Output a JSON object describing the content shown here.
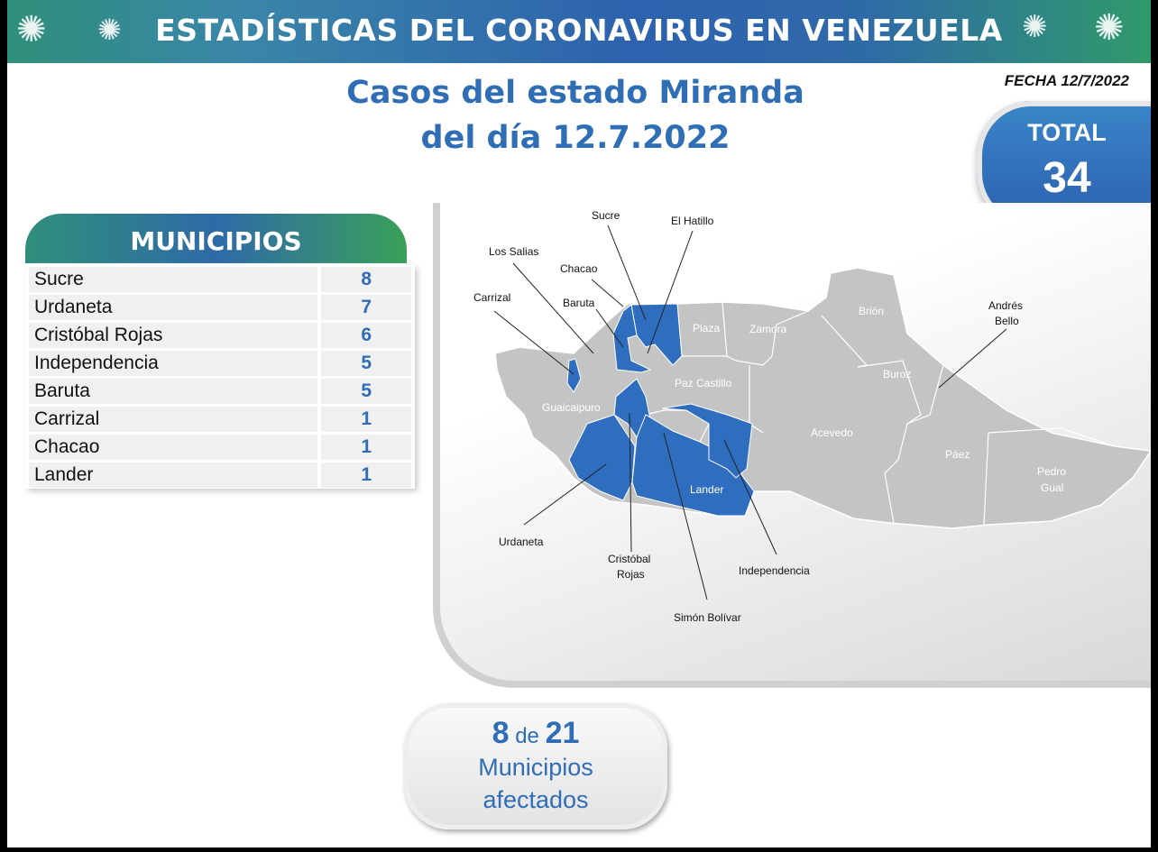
{
  "header": {
    "title": "ESTADÍSTICAS DEL CORONAVIRUS EN VENEZUELA"
  },
  "subtitle": {
    "line1": "Casos del estado Miranda",
    "line2": "del día 12.7.2022"
  },
  "fecha": "FECHA 12/7/2022",
  "total": {
    "label": "TOTAL",
    "value": "34"
  },
  "municipios": {
    "title": "MUNICIPIOS",
    "rows": [
      {
        "name": "Sucre",
        "cases": "8"
      },
      {
        "name": "Urdaneta",
        "cases": "7"
      },
      {
        "name": "Cristóbal Rojas",
        "cases": "6"
      },
      {
        "name": "Independencia",
        "cases": "5"
      },
      {
        "name": "Baruta",
        "cases": "5"
      },
      {
        "name": "Carrizal",
        "cases": "1"
      },
      {
        "name": "Chacao",
        "cases": "1"
      },
      {
        "name": "Lander",
        "cases": "1"
      }
    ]
  },
  "map": {
    "colors": {
      "affected": "#2f6dbf",
      "unaffected": "#c4c4c4"
    },
    "callouts": {
      "sucre": "Sucre",
      "el_hatillo": "El Hatillo",
      "los_salias": "Los Salias",
      "chacao": "Chacao",
      "carrizal": "Carrizal",
      "baruta": "Baruta",
      "andres_bello_1": "Andrés",
      "andres_bello_2": "Bello",
      "urdaneta": "Urdaneta",
      "cristobal_1": "Cristóbal",
      "cristobal_2": "Rojas",
      "independencia": "Independencia",
      "simon_bolivar": "Simón Bolívar"
    },
    "inline": {
      "plaza": "Plaza",
      "zamora": "Zamora",
      "brion": "Brión",
      "buroz": "Buroz",
      "paz_castillo": "Paz Castillo",
      "guaicaipuro": "Guaicaipuro",
      "acevedo": "Acevedo",
      "paez": "Páez",
      "pedro_gual_1": "Pedro",
      "pedro_gual_2": "Gual",
      "lander": "Lander"
    }
  },
  "summary": {
    "affected": "8",
    "connector": "de",
    "total": "21",
    "line2": "Municipios",
    "line3": "afectados"
  }
}
